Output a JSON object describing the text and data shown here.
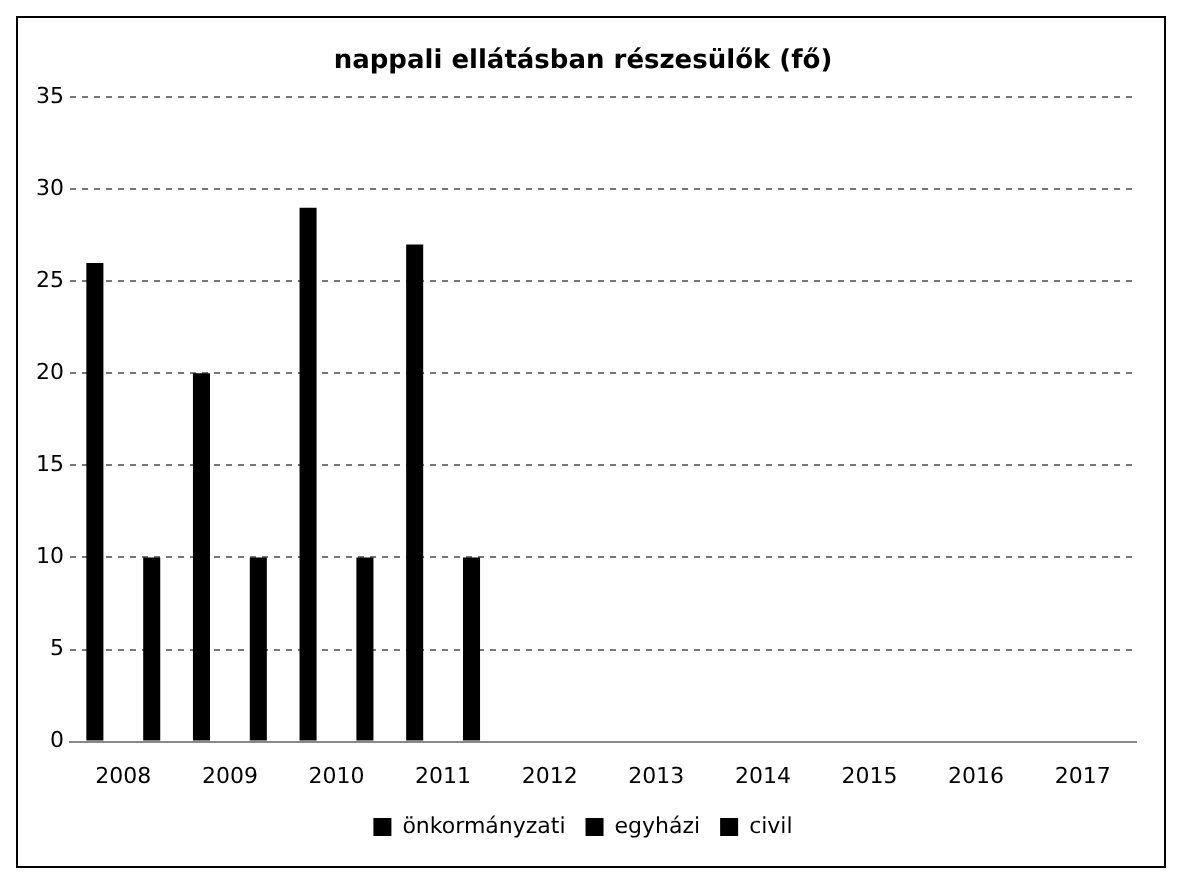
{
  "chart_data": {
    "type": "bar",
    "title": "nappali ellátásban részesülők (fő)",
    "categories": [
      "2008",
      "2009",
      "2010",
      "2011",
      "2012",
      "2013",
      "2014",
      "2015",
      "2016",
      "2017"
    ],
    "series": [
      {
        "name": "önkormányzati",
        "color": "#000000",
        "values": [
          26,
          20,
          29,
          27,
          null,
          null,
          null,
          null,
          null,
          null
        ]
      },
      {
        "name": "egyházi",
        "color": "#000000",
        "values": [
          null,
          null,
          null,
          null,
          null,
          null,
          null,
          null,
          null,
          null
        ]
      },
      {
        "name": "civil",
        "color": "#000000",
        "values": [
          10,
          10,
          10,
          10,
          null,
          null,
          null,
          null,
          null,
          null
        ]
      }
    ],
    "ylim": [
      0,
      35
    ],
    "yticks": [
      0,
      5,
      10,
      15,
      20,
      25,
      30,
      35
    ],
    "grid": "y",
    "legend": "bottom"
  }
}
